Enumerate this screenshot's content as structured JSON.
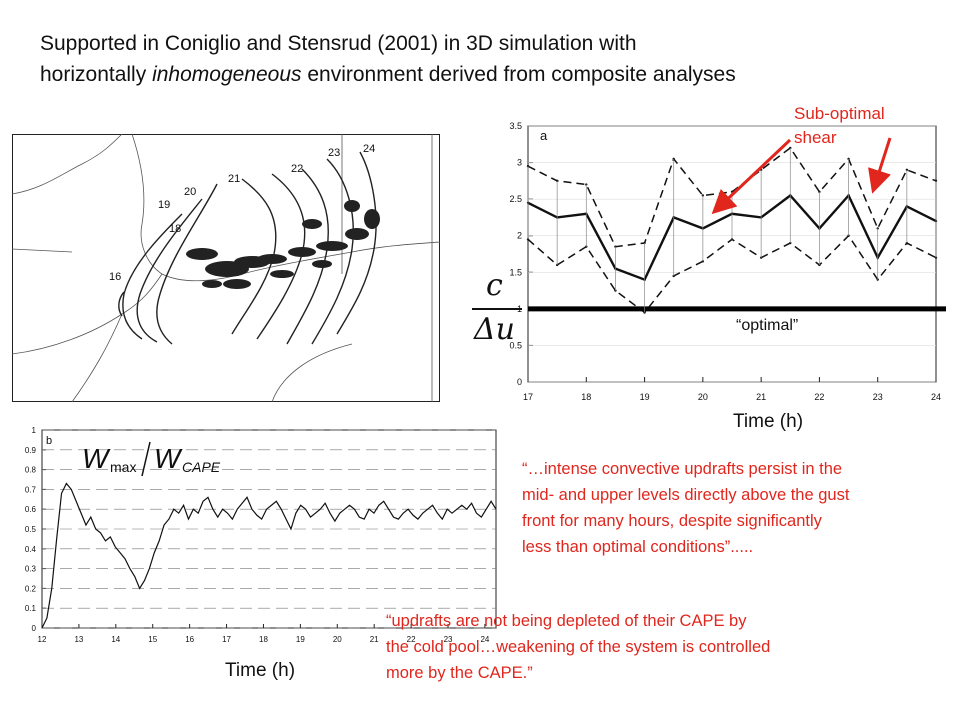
{
  "slide": {
    "title_line1": "Supported in Coniglio and Stensrud (2001) in 3D simulation with",
    "title_line2_a": "horizontally ",
    "title_line2_em": "inhomogeneous",
    "title_line2_b": " environment derived from composite analyses",
    "time_label_top": "Time (h)",
    "time_label_bottom": "Time (h)",
    "annotation_suboptimal_1": "Sub-optimal",
    "annotation_suboptimal_2": "shear",
    "annotation_optimal": "“optimal”",
    "quote1_line1": "“…intense convective updrafts persist in the",
    "quote1_line2": "mid- and upper levels directly above the gust",
    "quote1_line3": "front for many hours, despite significantly",
    "quote1_line4": "less than optimal conditions”.....",
    "quote2_line1": "“updrafts are not being depleted of their CAPE by",
    "quote2_line2": "the cold pool…weakening of the system is controlled",
    "quote2_line3": "more by the CAPE.”",
    "ratio_numerator": "c",
    "ratio_denominator": "Δu",
    "map_labels": [
      "16",
      "18",
      "19",
      "20",
      "21",
      "22",
      "23",
      "24"
    ],
    "colors": {
      "red": "#e0261d",
      "ink": "#111111"
    }
  },
  "chart_data": [
    {
      "type": "line",
      "panel_label": "a",
      "x": [
        17,
        17.5,
        18,
        18.5,
        19,
        19.5,
        20,
        20.5,
        21,
        21.5,
        22,
        22.5,
        23,
        23.5,
        24
      ],
      "xticks": [
        17,
        18,
        19,
        20,
        21,
        22,
        23,
        24
      ],
      "yticks": [
        0,
        0.5,
        1,
        1.5,
        2,
        2.5,
        3,
        3.5
      ],
      "xlim": [
        17,
        24
      ],
      "ylim": [
        0,
        3.5
      ],
      "series": [
        {
          "style": "solid",
          "values": [
            2.45,
            2.25,
            2.3,
            1.55,
            1.4,
            2.25,
            2.1,
            2.3,
            2.25,
            2.55,
            2.1,
            2.55,
            1.7,
            2.4,
            2.2
          ]
        },
        {
          "style": "dashed",
          "values": [
            2.95,
            2.75,
            2.7,
            1.85,
            1.9,
            3.05,
            2.55,
            2.6,
            2.9,
            3.2,
            2.6,
            3.05,
            2.1,
            2.9,
            2.75
          ]
        },
        {
          "style": "dashed",
          "values": [
            1.95,
            1.6,
            1.85,
            1.25,
            0.95,
            1.45,
            1.65,
            1.95,
            1.7,
            1.9,
            1.6,
            2.0,
            1.4,
            1.9,
            1.7
          ]
        },
        {
          "style": "bold",
          "values": [
            1,
            1,
            1,
            1,
            1,
            1,
            1,
            1,
            1,
            1,
            1,
            1,
            1,
            1,
            1
          ]
        }
      ]
    },
    {
      "type": "line",
      "panel_label": "b",
      "xticks": [
        12,
        13,
        14,
        15,
        16,
        17,
        18,
        19,
        20,
        21,
        22,
        23,
        24
      ],
      "yticks": [
        0,
        0.1,
        0.2,
        0.3,
        0.4,
        0.5,
        0.6,
        0.7,
        0.8,
        0.9,
        1
      ],
      "xlim": [
        12,
        24.3
      ],
      "ylim": [
        0,
        1
      ],
      "legend_numerator": "W",
      "legend_numerator_sub": "max",
      "legend_denominator": "W",
      "legend_denominator_sub": "CAPE",
      "series": [
        {
          "style": "solid",
          "values": [
            0,
            0.05,
            0.2,
            0.45,
            0.68,
            0.73,
            0.7,
            0.64,
            0.58,
            0.52,
            0.56,
            0.5,
            0.48,
            0.44,
            0.46,
            0.41,
            0.38,
            0.35,
            0.3,
            0.26,
            0.2,
            0.24,
            0.3,
            0.38,
            0.44,
            0.52,
            0.55,
            0.6,
            0.58,
            0.62,
            0.55,
            0.6,
            0.58,
            0.64,
            0.66,
            0.6,
            0.56,
            0.6,
            0.58,
            0.55,
            0.6,
            0.63,
            0.66,
            0.6,
            0.57,
            0.55,
            0.6,
            0.62,
            0.64,
            0.6,
            0.55,
            0.5,
            0.58,
            0.62,
            0.6,
            0.56,
            0.58,
            0.6,
            0.63,
            0.58,
            0.54,
            0.58,
            0.6,
            0.62,
            0.6,
            0.56,
            0.55,
            0.6,
            0.58,
            0.62,
            0.64,
            0.6,
            0.56,
            0.55,
            0.58,
            0.6,
            0.57,
            0.55,
            0.58,
            0.6,
            0.62,
            0.58,
            0.55,
            0.6,
            0.58,
            0.6,
            0.62,
            0.6,
            0.63,
            0.58,
            0.56,
            0.6,
            0.64,
            0.6
          ]
        }
      ]
    }
  ]
}
